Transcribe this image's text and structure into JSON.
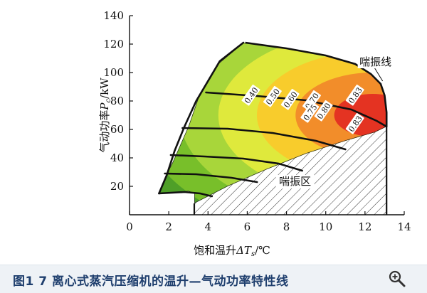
{
  "chart_data": {
    "type": "area",
    "xlabel_prefix": "饱和温升",
    "xlabel_var": "ΔT",
    "xlabel_sub": "s",
    "xlabel_unit": "/℃",
    "ylabel_prefix": "气动功率",
    "ylabel_var": "P",
    "ylabel_sub": "c",
    "ylabel_unit": "/kW",
    "xlim": [
      0,
      14
    ],
    "ylim": [
      0,
      140
    ],
    "xticks": [
      0,
      2,
      4,
      6,
      8,
      10,
      12,
      14
    ],
    "yticks": [
      20,
      40,
      60,
      80,
      100,
      120,
      140
    ],
    "grid": false,
    "region_boundary": [
      [
        1.5,
        15
      ],
      [
        2.3,
        15.5
      ],
      [
        3.0,
        16.5
      ],
      [
        3.3,
        15
      ],
      [
        3.3,
        8
      ],
      [
        5.0,
        20
      ],
      [
        7.0,
        32
      ],
      [
        9.0,
        43
      ],
      [
        11.0,
        52
      ],
      [
        12.5,
        58
      ],
      [
        13.1,
        62
      ],
      [
        13.1,
        72
      ],
      [
        13.0,
        84
      ],
      [
        12.8,
        92
      ],
      [
        12.3,
        99
      ],
      [
        11.5,
        106
      ],
      [
        10.0,
        112
      ],
      [
        8.0,
        117
      ],
      [
        5.9,
        121
      ],
      [
        5.8,
        121
      ],
      [
        4.5,
        106
      ],
      [
        3.5,
        82
      ],
      [
        3.0,
        62
      ],
      [
        2.2,
        37
      ],
      [
        1.8,
        26
      ],
      [
        1.5,
        15
      ]
    ],
    "efficiency_bands": [
      {
        "from": 0.4,
        "to": 0.5,
        "color": "#4f9f28"
      },
      {
        "from": 0.5,
        "to": 0.6,
        "color": "#78bf2a"
      },
      {
        "from": 0.6,
        "to": 0.7,
        "color": "#a8d63a"
      },
      {
        "from": 0.7,
        "to": 0.75,
        "color": "#dfe93c"
      },
      {
        "from": 0.75,
        "to": 0.8,
        "color": "#f8cc2c"
      },
      {
        "from": 0.8,
        "to": 0.83,
        "color": "#f28d2a"
      },
      {
        "from": 0.83,
        "to": 0.85,
        "color": "#e43322"
      }
    ],
    "efficiency_labels": [
      {
        "text": "0.40",
        "x": 6.2,
        "y": 84
      },
      {
        "text": "0.50",
        "x": 7.3,
        "y": 83
      },
      {
        "text": "0.60",
        "x": 8.2,
        "y": 81
      },
      {
        "text": "0.70",
        "x": 9.3,
        "y": 80
      },
      {
        "text": "0.75",
        "x": 9.2,
        "y": 72
      },
      {
        "text": "0.80",
        "x": 9.9,
        "y": 73
      },
      {
        "text": "0.83",
        "x": 11.5,
        "y": 84
      },
      {
        "text": "0.83",
        "x": 11.5,
        "y": 64
      }
    ],
    "speed_lines": [
      [
        [
          5.8,
          121
        ],
        [
          4.6,
          108
        ],
        [
          3.4,
          80
        ],
        [
          2.8,
          62
        ],
        [
          2.3,
          45
        ],
        [
          1.9,
          28
        ],
        [
          1.5,
          15
        ]
      ],
      [
        [
          3.9,
          86
        ],
        [
          6.5,
          83.5
        ],
        [
          9.0,
          80.5
        ],
        [
          11.3,
          74
        ],
        [
          12.6,
          66
        ],
        [
          13.1,
          62
        ]
      ],
      [
        [
          2.7,
          61
        ],
        [
          5.0,
          60.5
        ],
        [
          7.3,
          57.5
        ],
        [
          9.5,
          52
        ],
        [
          11.0,
          46
        ]
      ],
      [
        [
          2.1,
          42
        ],
        [
          3.8,
          41
        ],
        [
          5.8,
          39.5
        ],
        [
          7.6,
          36
        ],
        [
          8.8,
          31
        ]
      ],
      [
        [
          1.8,
          29
        ],
        [
          3.4,
          28.5
        ],
        [
          5.2,
          26
        ],
        [
          6.5,
          23
        ]
      ],
      [
        [
          1.5,
          15
        ],
        [
          2.8,
          16
        ],
        [
          3.6,
          15
        ],
        [
          4.2,
          13
        ]
      ]
    ],
    "surge_line": [
      [
        13.1,
        62
      ],
      [
        13.1,
        72
      ],
      [
        13.0,
        84
      ],
      [
        12.8,
        92
      ],
      [
        12.3,
        99
      ],
      [
        11.5,
        106
      ],
      [
        10.0,
        112
      ],
      [
        8.0,
        117
      ],
      [
        5.9,
        121
      ]
    ],
    "surge_zone": [
      [
        3.3,
        0
      ],
      [
        3.3,
        8
      ],
      [
        5.0,
        20
      ],
      [
        7.0,
        32
      ],
      [
        9.0,
        43
      ],
      [
        11.0,
        52
      ],
      [
        12.5,
        58
      ],
      [
        13.1,
        62
      ],
      [
        13.1,
        0
      ]
    ],
    "annotations": [
      {
        "text": "喘振线",
        "x": 12.5,
        "y": 105,
        "tip_x": 12.9,
        "tip_y": 94
      },
      {
        "text": "喘振区",
        "x": 8.4,
        "y": 21
      }
    ]
  },
  "caption": "图1 7 离心式蒸汽压缩机的温升—气动功率特性线",
  "zoom_icon": "magnifier-icon"
}
